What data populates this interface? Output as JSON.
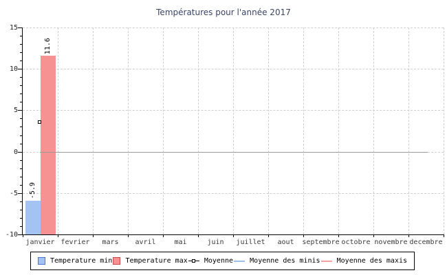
{
  "chart_data": {
    "type": "bar",
    "title": "Températures pour l'année 2017",
    "categories": [
      "janvier",
      "fevrier",
      "mars",
      "avril",
      "mai",
      "juin",
      "juillet",
      "aout",
      "septembre",
      "octobre",
      "novembre",
      "decembre"
    ],
    "series": [
      {
        "name": "Temperature min",
        "type": "bar",
        "fill": "#a3c3f3",
        "border": "#4a72d4",
        "values": [
          -5.9,
          null,
          null,
          null,
          null,
          null,
          null,
          null,
          null,
          null,
          null,
          null
        ],
        "value_labels": [
          "-5.9",
          null,
          null,
          null,
          null,
          null,
          null,
          null,
          null,
          null,
          null,
          null
        ]
      },
      {
        "name": "Temperature max",
        "type": "bar",
        "fill": "#f79292",
        "border": "#c84848",
        "values": [
          11.6,
          null,
          null,
          null,
          null,
          null,
          null,
          null,
          null,
          null,
          null,
          null
        ],
        "value_labels": [
          "11.6",
          null,
          null,
          null,
          null,
          null,
          null,
          null,
          null,
          null,
          null,
          null
        ]
      },
      {
        "name": "Moyenne",
        "type": "point",
        "color": "#000000",
        "values": [
          3.5,
          null,
          null,
          null,
          null,
          null,
          null,
          null,
          null,
          null,
          null,
          null
        ]
      },
      {
        "name": "Moyenne des minis",
        "type": "line",
        "color": "#9fc0ea",
        "values": [
          0,
          0,
          0,
          0,
          0,
          0,
          0,
          0,
          0,
          0,
          0,
          0
        ]
      },
      {
        "name": "Moyenne des maxis",
        "type": "line",
        "color": "#f6a0a0",
        "values": [
          0,
          0,
          0,
          0,
          0,
          0,
          0,
          0,
          0,
          0,
          0,
          0
        ]
      }
    ],
    "overlay_line": {
      "value": 0,
      "color": "#999999"
    },
    "ylim": [
      -10,
      15
    ],
    "y_major_ticks": [
      15,
      10,
      5,
      0,
      -5,
      -10
    ],
    "y_minor_step": 1,
    "grid": true,
    "legend_position": "bottom"
  },
  "legend": {
    "items": [
      {
        "label": "Temperature min",
        "swatch": "box",
        "fill": "#a3c3f3",
        "border": "#4a72d4"
      },
      {
        "label": "Temperature max",
        "swatch": "box",
        "fill": "#f79292",
        "border": "#c84848"
      },
      {
        "label": "Moyenne",
        "swatch": "marker",
        "color": "#000000"
      },
      {
        "label": "Moyenne des minis",
        "swatch": "line",
        "color": "#9fc0ea"
      },
      {
        "label": "Moyenne des maxis",
        "swatch": "line",
        "color": "#f6a0a0"
      }
    ]
  }
}
